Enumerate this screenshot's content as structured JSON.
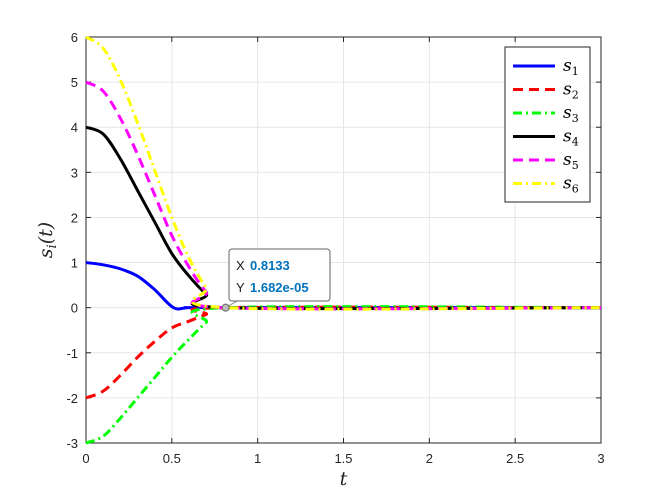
{
  "chart_data": {
    "type": "line",
    "title": "",
    "xlabel": "t",
    "ylabel": "s_i(t)",
    "xlim": [
      0,
      3
    ],
    "ylim": [
      -3,
      6
    ],
    "xticks": [
      "0",
      "0.5",
      "1",
      "1.5",
      "2",
      "2.5",
      "3"
    ],
    "xtick_values": [
      0,
      0.5,
      1,
      1.5,
      2,
      2.5,
      3
    ],
    "yticks": [
      "-3",
      "-2",
      "-1",
      "0",
      "1",
      "2",
      "3",
      "4",
      "5",
      "6"
    ],
    "ytick_values": [
      -3,
      -2,
      -1,
      0,
      1,
      2,
      3,
      4,
      5,
      6
    ],
    "grid": true,
    "legend_position": "top-right",
    "series": [
      {
        "name": "s",
        "sub": "1",
        "color": "#0000ff",
        "style": "solid",
        "x": [
          0,
          0.1,
          0.2,
          0.3,
          0.4,
          0.51,
          0.6,
          0.8133,
          3
        ],
        "y": [
          1,
          0.95,
          0.86,
          0.7,
          0.4,
          0,
          0,
          0,
          0
        ]
      },
      {
        "name": "s",
        "sub": "2",
        "color": "#ff0000",
        "style": "dashed",
        "x": [
          0,
          0.1,
          0.2,
          0.3,
          0.4,
          0.5,
          0.6,
          0.7,
          0.8133,
          3
        ],
        "y": [
          -2,
          -1.85,
          -1.5,
          -1.1,
          -0.75,
          -0.45,
          -0.3,
          -0.15,
          0,
          0
        ]
      },
      {
        "name": "s",
        "sub": "3",
        "color": "#00ff00",
        "style": "dashdot",
        "x": [
          0,
          0.1,
          0.2,
          0.3,
          0.4,
          0.5,
          0.6,
          0.7,
          0.8133,
          3
        ],
        "y": [
          -3,
          -2.85,
          -2.45,
          -2.0,
          -1.55,
          -1.1,
          -0.7,
          -0.33,
          0,
          0
        ]
      },
      {
        "name": "s",
        "sub": "4",
        "color": "#000000",
        "style": "solid",
        "x": [
          0,
          0.1,
          0.2,
          0.3,
          0.4,
          0.5,
          0.6,
          0.7,
          0.8133,
          3
        ],
        "y": [
          4,
          3.85,
          3.3,
          2.6,
          1.9,
          1.2,
          0.7,
          0.3,
          0,
          0
        ]
      },
      {
        "name": "s",
        "sub": "5",
        "color": "#ff00ff",
        "style": "dashed",
        "x": [
          0,
          0.1,
          0.2,
          0.3,
          0.4,
          0.5,
          0.6,
          0.7,
          0.8133,
          3
        ],
        "y": [
          5,
          4.8,
          4.2,
          3.4,
          2.5,
          1.6,
          0.9,
          0.35,
          0,
          0
        ]
      },
      {
        "name": "s",
        "sub": "6",
        "color": "#ffff00",
        "style": "dashdot",
        "x": [
          0,
          0.1,
          0.2,
          0.3,
          0.4,
          0.5,
          0.6,
          0.7,
          0.8133,
          3
        ],
        "y": [
          6,
          5.75,
          5.05,
          4.1,
          3.05,
          2.0,
          1.1,
          0.45,
          0,
          0
        ]
      }
    ],
    "datatip": {
      "x_key": "X",
      "x_value": "0.8133",
      "y_key": "Y",
      "y_value": "1.682e-05",
      "x": 0.8133,
      "y": 0
    }
  }
}
